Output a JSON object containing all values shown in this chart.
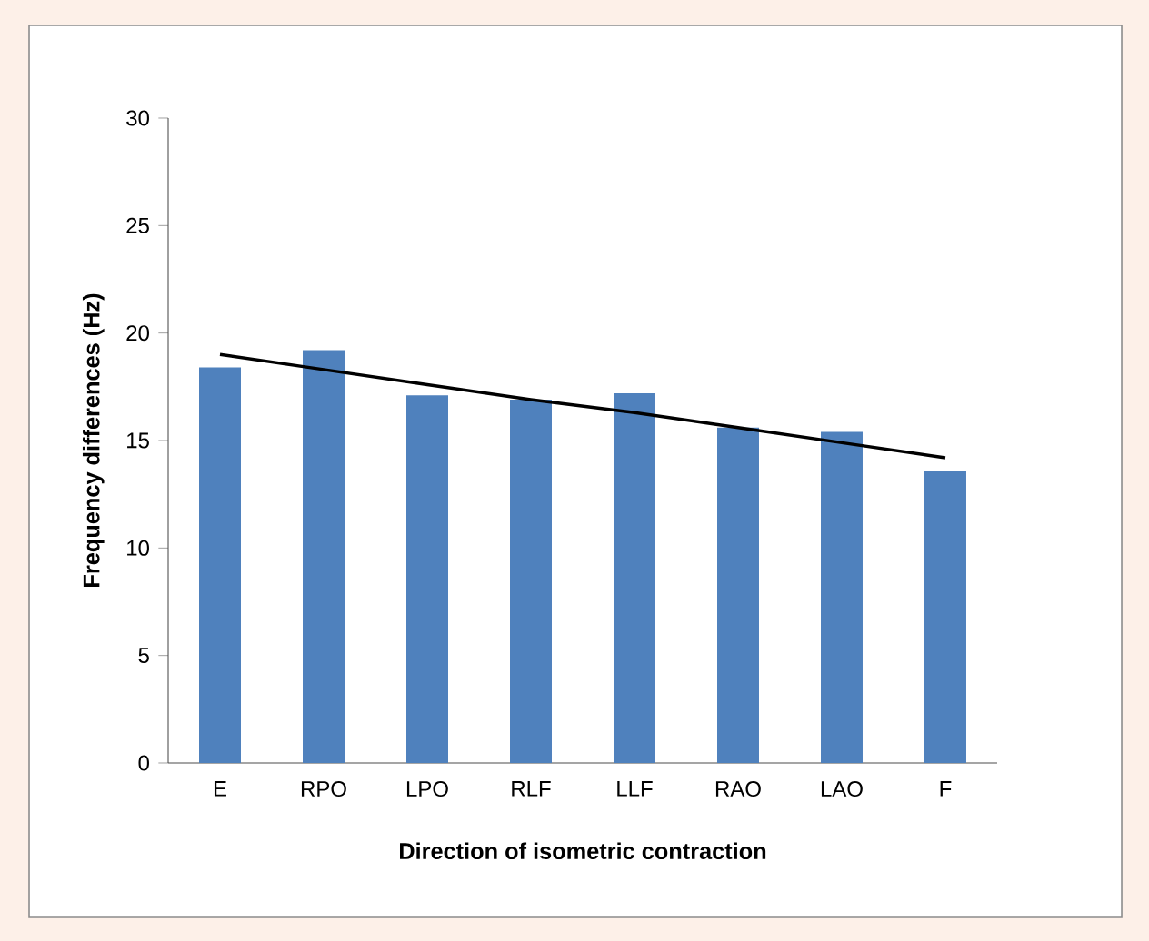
{
  "chart_data": {
    "type": "bar",
    "xlabel": "Direction of isometric contraction",
    "ylabel": "Frequency differences (Hz)",
    "categories": [
      "E",
      "RPO",
      "LPO",
      "RLF",
      "LLF",
      "RAO",
      "LAO",
      "F"
    ],
    "series": [
      {
        "color": "#4f81bd",
        "values": [
          18.4,
          19.2,
          17.1,
          16.9,
          17.2,
          15.6,
          15.4,
          13.6
        ]
      },
      {
        "type": "line",
        "color": "#000000",
        "values": [
          19.0,
          18.3,
          17.6,
          16.9,
          16.3,
          15.6,
          14.9,
          14.2
        ]
      }
    ],
    "ylim": [
      0,
      30
    ],
    "yticks": [
      0,
      5,
      10,
      15,
      20,
      25,
      30
    ],
    "grid": false
  }
}
